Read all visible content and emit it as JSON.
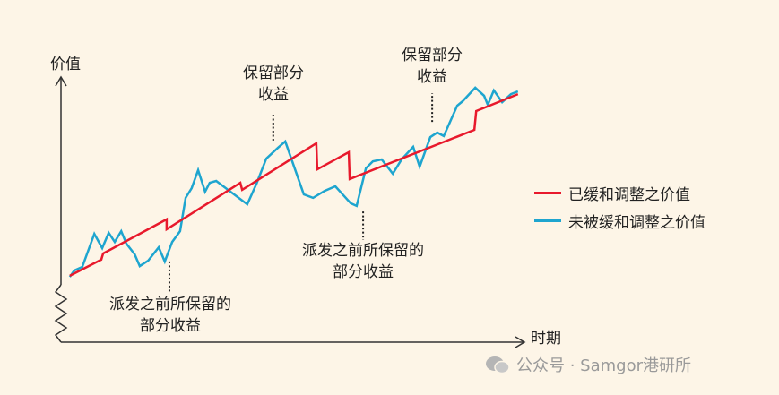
{
  "chart_data": {
    "type": "line",
    "ylabel": "价值",
    "xlabel": "时期",
    "grid": false,
    "legend_placement": "right",
    "xlim": [
      0,
      100
    ],
    "ylim": [
      0,
      100
    ],
    "series": [
      {
        "name": "已缓和调整之价值",
        "color": "#e8192c",
        "points": [
          [
            1.9,
            24.7
          ],
          [
            8.7,
            30.7
          ],
          [
            9.1,
            33
          ],
          [
            22.8,
            45.7
          ],
          [
            22.8,
            42
          ],
          [
            38.7,
            59.3
          ],
          [
            39.1,
            56.7
          ],
          [
            55.1,
            74
          ],
          [
            55.3,
            64.3
          ],
          [
            62.1,
            70.7
          ],
          [
            62.3,
            60.7
          ],
          [
            89.2,
            79
          ],
          [
            89.6,
            86
          ],
          [
            98.6,
            92.3
          ]
        ]
      },
      {
        "name": "未被缓和调整之价值",
        "color": "#1ea5cf",
        "points": [
          [
            1.9,
            24.3
          ],
          [
            2.9,
            26.7
          ],
          [
            4.6,
            28
          ],
          [
            7.2,
            40.3
          ],
          [
            8.9,
            35
          ],
          [
            10.3,
            40.7
          ],
          [
            11.6,
            37.3
          ],
          [
            13,
            41.3
          ],
          [
            14.1,
            36.7
          ],
          [
            15.9,
            32.7
          ],
          [
            17,
            28.3
          ],
          [
            18.8,
            30.3
          ],
          [
            21.1,
            35.3
          ],
          [
            22.4,
            30
          ],
          [
            24,
            37.3
          ],
          [
            25.7,
            41.3
          ],
          [
            26.9,
            53.7
          ],
          [
            28.2,
            57.3
          ],
          [
            29.6,
            64
          ],
          [
            31.1,
            56
          ],
          [
            32.1,
            59.3
          ],
          [
            33.5,
            60
          ],
          [
            36.8,
            55.7
          ],
          [
            40.2,
            51.3
          ],
          [
            42.2,
            59
          ],
          [
            44.3,
            68.3
          ],
          [
            46.8,
            72.3
          ],
          [
            48.4,
            74.7
          ],
          [
            52.4,
            55
          ],
          [
            54.4,
            53.7
          ],
          [
            56.9,
            56.3
          ],
          [
            59.2,
            58
          ],
          [
            62.5,
            51.7
          ],
          [
            63.8,
            50.7
          ],
          [
            65.8,
            64.7
          ],
          [
            67.3,
            67.3
          ],
          [
            69.2,
            68
          ],
          [
            71.6,
            62.7
          ],
          [
            73.5,
            68
          ],
          [
            76,
            72.7
          ],
          [
            77.4,
            65.3
          ],
          [
            79.7,
            76.3
          ],
          [
            81.2,
            78
          ],
          [
            82.6,
            76.7
          ],
          [
            85.5,
            88
          ],
          [
            86.7,
            89.7
          ],
          [
            89.4,
            94.7
          ],
          [
            91.3,
            91.7
          ],
          [
            92.1,
            88.3
          ],
          [
            93.4,
            93.7
          ],
          [
            95.2,
            89.3
          ],
          [
            97.1,
            92.3
          ],
          [
            98.6,
            93.3
          ]
        ]
      }
    ],
    "annotations": [
      {
        "line1": "派发之前所保留的",
        "line2": "部分收益",
        "at": [
          23.4,
          30.7
        ]
      },
      {
        "line1": "保留部分",
        "line2": "收益",
        "at": [
          45.8,
          74
        ]
      },
      {
        "line1": "派发之前所保留的",
        "line2": "部分收益",
        "at": [
          65.2,
          49.3
        ]
      },
      {
        "line1": "保留部分",
        "line2": "收益",
        "at": [
          80.1,
          81.3
        ]
      }
    ]
  },
  "watermark": {
    "text": "公众号 · Samgor港研所",
    "icon": "wechat-icon"
  }
}
